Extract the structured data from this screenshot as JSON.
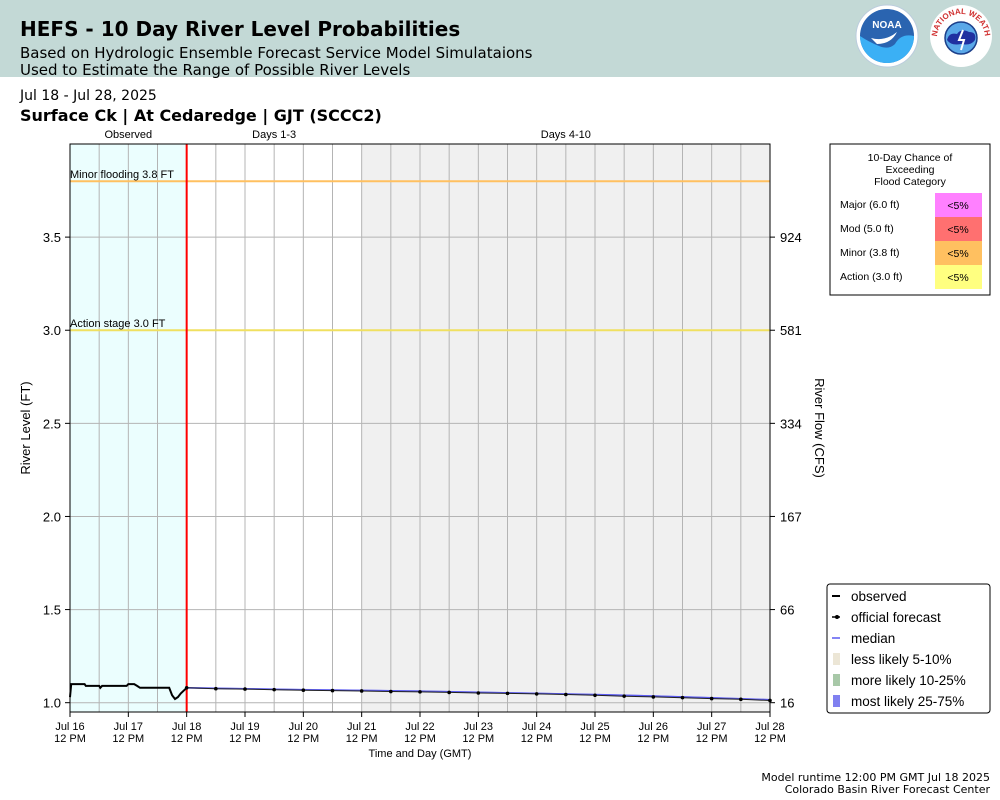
{
  "header": {
    "title": "HEFS - 10 Day River Level Probabilities",
    "subtitle_1": "Based on Hydrologic Ensemble Forecast Service Model Simulataions",
    "subtitle_2": "Used to Estimate the Range of Possible River Levels"
  },
  "logos": {
    "noaa_text": "NOAA",
    "nws_text": "NATIONAL WEATHER SERVICE"
  },
  "date_range": "Jul 18 - Jul 28, 2025",
  "station": "Surface Ck | At Cedaredge | GJT (SCCC2)",
  "footer": {
    "runtime": "Model runtime 12:00 PM GMT Jul 18 2025",
    "center": "Colorado Basin River Forecast Center"
  },
  "colors": {
    "header_bg": "#c3d9d6",
    "observed_region": "#ebfefe",
    "days_4_10_region": "#f0f0f0",
    "forecast_start_line": "#ff0000",
    "minor_line": "#ffc060",
    "action_line": "#f0e060",
    "median": "#5a5af0",
    "band_25_75": "#8080f0",
    "band_10_25": "#a8c8a8",
    "band_5_10": "#ece6d6",
    "major": "#ff80ff",
    "moderate": "#ff7070",
    "minor": "#ffc060",
    "action": "#ffff80"
  },
  "chart_data": {
    "type": "line",
    "xlabel": "Time and Day (GMT)",
    "ylabel": "River Level (FT)",
    "y2label": "River Flow (CFS)",
    "x_range_days": [
      "Jul 16 12 PM",
      "Jul 28 12 PM"
    ],
    "ylim": [
      0.95,
      4.0
    ],
    "y_ticks": [
      1.0,
      1.5,
      2.0,
      2.5,
      3.0,
      3.5
    ],
    "y2_ticks": [
      {
        "stage": 1.0,
        "label": "16"
      },
      {
        "stage": 1.5,
        "label": "66"
      },
      {
        "stage": 2.0,
        "label": "167"
      },
      {
        "stage": 2.5,
        "label": "334"
      },
      {
        "stage": 3.0,
        "label": "581"
      },
      {
        "stage": 3.5,
        "label": "924"
      }
    ],
    "x_ticks": [
      {
        "d": 0,
        "date": "Jul 16",
        "time": "12 PM"
      },
      {
        "d": 1,
        "date": "Jul 17",
        "time": "12 PM"
      },
      {
        "d": 2,
        "date": "Jul 18",
        "time": "12 PM"
      },
      {
        "d": 3,
        "date": "Jul 19",
        "time": "12 PM"
      },
      {
        "d": 4,
        "date": "Jul 20",
        "time": "12 PM"
      },
      {
        "d": 5,
        "date": "Jul 21",
        "time": "12 PM"
      },
      {
        "d": 6,
        "date": "Jul 22",
        "time": "12 PM"
      },
      {
        "d": 7,
        "date": "Jul 23",
        "time": "12 PM"
      },
      {
        "d": 8,
        "date": "Jul 24",
        "time": "12 PM"
      },
      {
        "d": 9,
        "date": "Jul 25",
        "time": "12 PM"
      },
      {
        "d": 10,
        "date": "Jul 26",
        "time": "12 PM"
      },
      {
        "d": 11,
        "date": "Jul 27",
        "time": "12 PM"
      },
      {
        "d": 12,
        "date": "Jul 28",
        "time": "12 PM"
      }
    ],
    "regions": [
      {
        "label": "Observed",
        "from": 0,
        "to": 2
      },
      {
        "label": "Days 1-3",
        "from": 2,
        "to": 5
      },
      {
        "label": "Days 4-10",
        "from": 5,
        "to": 12
      }
    ],
    "forecast_start": 2,
    "thresholds": [
      {
        "label": "Minor flooding 3.8 FT",
        "stage": 3.8,
        "kind": "minor"
      },
      {
        "label": "Action stage 3.0 FT",
        "stage": 3.0,
        "kind": "action"
      }
    ],
    "series": [
      {
        "name": "observed",
        "points": [
          [
            0,
            1.03
          ],
          [
            0.02,
            1.1
          ],
          [
            0.25,
            1.1
          ],
          [
            0.27,
            1.09
          ],
          [
            0.5,
            1.09
          ],
          [
            0.52,
            1.08
          ],
          [
            0.55,
            1.09
          ],
          [
            0.97,
            1.09
          ],
          [
            1.0,
            1.1
          ],
          [
            1.1,
            1.1
          ],
          [
            1.15,
            1.09
          ],
          [
            1.2,
            1.08
          ],
          [
            1.7,
            1.08
          ],
          [
            1.75,
            1.04
          ],
          [
            1.8,
            1.02
          ],
          [
            1.85,
            1.03
          ],
          [
            1.9,
            1.05
          ],
          [
            2.0,
            1.08
          ]
        ]
      },
      {
        "name": "official forecast",
        "points": [
          [
            2.0,
            1.08
          ],
          [
            2.5,
            1.075
          ],
          [
            3.0,
            1.073
          ],
          [
            3.5,
            1.07
          ],
          [
            4.0,
            1.067
          ],
          [
            4.5,
            1.065
          ],
          [
            5.0,
            1.063
          ],
          [
            5.5,
            1.06
          ],
          [
            6.0,
            1.058
          ],
          [
            6.5,
            1.055
          ],
          [
            7.0,
            1.052
          ],
          [
            7.5,
            1.05
          ],
          [
            8.0,
            1.047
          ],
          [
            8.5,
            1.044
          ],
          [
            9.0,
            1.04
          ],
          [
            9.5,
            1.035
          ],
          [
            10.0,
            1.031
          ],
          [
            10.5,
            1.027
          ],
          [
            11.0,
            1.022
          ],
          [
            11.5,
            1.018
          ],
          [
            12.0,
            1.012
          ]
        ]
      },
      {
        "name": "median",
        "points": [
          [
            2.0,
            1.08
          ],
          [
            3.0,
            1.075
          ],
          [
            4.0,
            1.07
          ],
          [
            5.0,
            1.066
          ],
          [
            6.0,
            1.062
          ],
          [
            7.0,
            1.056
          ],
          [
            8.0,
            1.05
          ],
          [
            9.0,
            1.044
          ],
          [
            10.0,
            1.036
          ],
          [
            11.0,
            1.027
          ],
          [
            12.0,
            1.016
          ]
        ]
      },
      {
        "name": "less likely 5-10%",
        "lower": 1.0,
        "upper": 1.0
      },
      {
        "name": "more likely 10-25%",
        "lower": 1.0,
        "upper": 1.0
      },
      {
        "name": "most likely 25-75%",
        "lower": [
          [
            2.0,
            1.075
          ],
          [
            4.0,
            1.066
          ],
          [
            6.0,
            1.058
          ],
          [
            8.0,
            1.046
          ],
          [
            10.0,
            1.032
          ],
          [
            12.0,
            1.011
          ]
        ],
        "upper": [
          [
            2.0,
            1.084
          ],
          [
            4.0,
            1.074
          ],
          [
            6.0,
            1.066
          ],
          [
            8.0,
            1.054
          ],
          [
            10.0,
            1.04
          ],
          [
            12.0,
            1.02
          ]
        ]
      }
    ],
    "legend_position": "lower-right",
    "grid": true
  },
  "probability_table": {
    "title_lines": [
      "10-Day Chance of",
      "Exceeding",
      "Flood Category"
    ],
    "rows": [
      {
        "label": "Major (6.0 ft)",
        "value": "<5%",
        "kind": "major"
      },
      {
        "label": "Mod (5.0 ft)",
        "value": "<5%",
        "kind": "moderate"
      },
      {
        "label": "Minor (3.8 ft)",
        "value": "<5%",
        "kind": "minor"
      },
      {
        "label": "Action (3.0 ft)",
        "value": "<5%",
        "kind": "action"
      }
    ]
  },
  "legend": [
    {
      "label": "observed",
      "kind": "observed"
    },
    {
      "label": "official forecast",
      "kind": "official"
    },
    {
      "label": "median",
      "kind": "median"
    },
    {
      "label": "less likely 5-10%",
      "kind": "band_5_10"
    },
    {
      "label": "more likely 10-25%",
      "kind": "band_10_25"
    },
    {
      "label": "most likely 25-75%",
      "kind": "band_25_75"
    }
  ]
}
